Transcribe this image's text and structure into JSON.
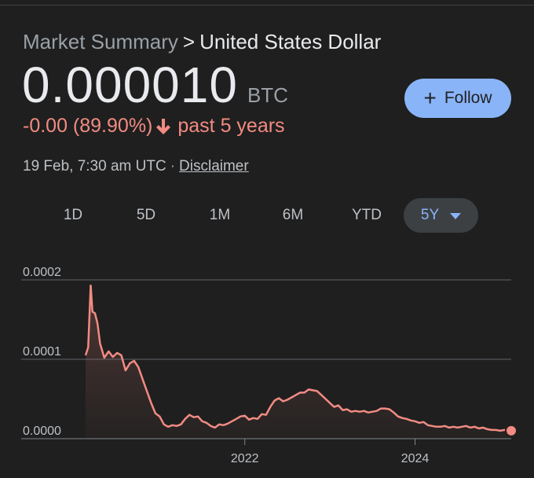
{
  "breadcrumb": {
    "root": "Market Summary",
    "separator": ">",
    "current": "United States Dollar"
  },
  "quote": {
    "price": "0.000010",
    "currency": "BTC"
  },
  "follow": {
    "label": "Follow"
  },
  "change": {
    "text": "-0.00 (89.90%)",
    "period": "past 5 years"
  },
  "meta": {
    "timestamp": "19 Feb, 7:30 am UTC",
    "separator": "·",
    "disclaimer": "Disclaimer"
  },
  "ranges": {
    "items": [
      {
        "label": "1D"
      },
      {
        "label": "5D"
      },
      {
        "label": "1M"
      },
      {
        "label": "6M"
      },
      {
        "label": "YTD"
      },
      {
        "label": "5Y"
      }
    ],
    "selected": "5Y"
  },
  "colors": {
    "background": "#1f1f1f",
    "accent": "#8ab4f8",
    "negative": "#f28b82",
    "muted": "#9aa0a6"
  },
  "chart_data": {
    "type": "area",
    "ytick_labels": [
      "0.0000",
      "0.0001",
      "0.0002"
    ],
    "yticks": [
      0,
      0.0001,
      0.0002
    ],
    "ylim": [
      0,
      0.0002
    ],
    "xtick_labels": [
      "2022",
      "2024"
    ],
    "xticks": [
      2022.0,
      2024.0
    ],
    "xlim": [
      2020.13,
      2025.13
    ],
    "grid": true,
    "series": [
      {
        "x": [
          2020.13,
          2020.16,
          2020.19,
          2020.21,
          2020.24,
          2020.27,
          2020.3,
          2020.35,
          2020.4,
          2020.45,
          2020.5,
          2020.55,
          2020.6,
          2020.65,
          2020.7,
          2020.75,
          2020.8,
          2020.85,
          2020.9,
          2020.95,
          2021.0,
          2021.05,
          2021.1,
          2021.15,
          2021.2,
          2021.25,
          2021.3,
          2021.35,
          2021.4,
          2021.45,
          2021.5,
          2021.55,
          2021.6,
          2021.65,
          2021.7,
          2021.75,
          2021.8,
          2021.85,
          2021.9,
          2021.95,
          2022.0,
          2022.05,
          2022.1,
          2022.15,
          2022.2,
          2022.25,
          2022.3,
          2022.35,
          2022.4,
          2022.45,
          2022.5,
          2022.55,
          2022.6,
          2022.65,
          2022.7,
          2022.75,
          2022.8,
          2022.85,
          2022.9,
          2022.95,
          2023.0,
          2023.05,
          2023.1,
          2023.15,
          2023.2,
          2023.25,
          2023.3,
          2023.35,
          2023.4,
          2023.45,
          2023.5,
          2023.55,
          2023.6,
          2023.65,
          2023.7,
          2023.75,
          2023.8,
          2023.85,
          2023.9,
          2023.95,
          2024.0,
          2024.05,
          2024.1,
          2024.15,
          2024.2,
          2024.25,
          2024.3,
          2024.35,
          2024.4,
          2024.45,
          2024.5,
          2024.55,
          2024.6,
          2024.65,
          2024.7,
          2024.75,
          2024.8,
          2024.85,
          2024.9,
          2024.95,
          2025.0,
          2025.05,
          2025.13
        ],
        "y": [
          0.000105,
          0.000115,
          0.000193,
          0.00016,
          0.000158,
          0.000145,
          0.00012,
          0.000102,
          0.00011,
          0.000103,
          0.000108,
          0.000105,
          8.6e-05,
          9.5e-05,
          9.8e-05,
          9e-05,
          7.5e-05,
          6e-05,
          4.5e-05,
          3.2e-05,
          2.8e-05,
          1.8e-05,
          1.5e-05,
          1.7e-05,
          1.6e-05,
          1.8e-05,
          2.5e-05,
          3e-05,
          2.7e-05,
          2.8e-05,
          2.2e-05,
          2e-05,
          1.6e-05,
          1.4e-05,
          1.8e-05,
          1.7e-05,
          1.9e-05,
          2.2e-05,
          2.5e-05,
          2.8e-05,
          2.9e-05,
          2.4e-05,
          2.6e-05,
          2.5e-05,
          3.1e-05,
          3e-05,
          4e-05,
          4.8e-05,
          5.1e-05,
          4.7e-05,
          4.9e-05,
          5.2e-05,
          5.5e-05,
          5.8e-05,
          5.8e-05,
          6.2e-05,
          6.1e-05,
          6e-05,
          5.5e-05,
          5e-05,
          4.5e-05,
          4e-05,
          4.2e-05,
          3.6e-05,
          3.7e-05,
          3.4e-05,
          3.5e-05,
          3.4e-05,
          3.5e-05,
          3.3e-05,
          3.4e-05,
          3.5e-05,
          3.8e-05,
          3.8e-05,
          3.7e-05,
          3.3e-05,
          2.8e-05,
          2.6e-05,
          2.5e-05,
          2.3e-05,
          2.2e-05,
          2e-05,
          2.1e-05,
          1.7e-05,
          1.6e-05,
          1.5e-05,
          1.5e-05,
          1.6e-05,
          1.4e-05,
          1.5e-05,
          1.4e-05,
          1.5e-05,
          1.6e-05,
          1.4e-05,
          1.5e-05,
          1.3e-05,
          1.4e-05,
          1.2e-05,
          1.1e-05,
          1.1e-05,
          1e-05,
          1.1e-05,
          1e-05
        ]
      }
    ]
  }
}
